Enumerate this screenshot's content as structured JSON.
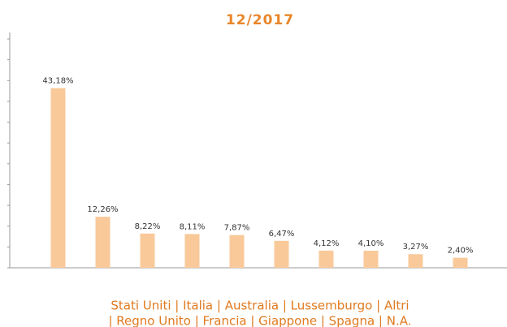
{
  "chart_data": {
    "type": "bar",
    "title": "12/2017",
    "values": [
      43.18,
      12.26,
      8.22,
      8.11,
      7.87,
      6.47,
      4.12,
      4.1,
      3.27,
      2.4
    ],
    "value_labels": [
      "43,18%",
      "12,26%",
      "8,22%",
      "8,11%",
      "7,87%",
      "6,47%",
      "4,12%",
      "4,10%",
      "3,27%",
      "2,40%"
    ],
    "color": "#f9c99a",
    "ylim": [
      0,
      55
    ],
    "yticks": [
      0,
      5,
      10,
      15,
      20,
      25,
      30,
      35,
      40,
      45,
      50,
      55
    ],
    "caption_lines": [
      "Stati Uniti | Italia | Australia | Lussemburgo | Altri",
      "| Regno Unito | Francia | Giappone | Spagna | N.A."
    ]
  }
}
